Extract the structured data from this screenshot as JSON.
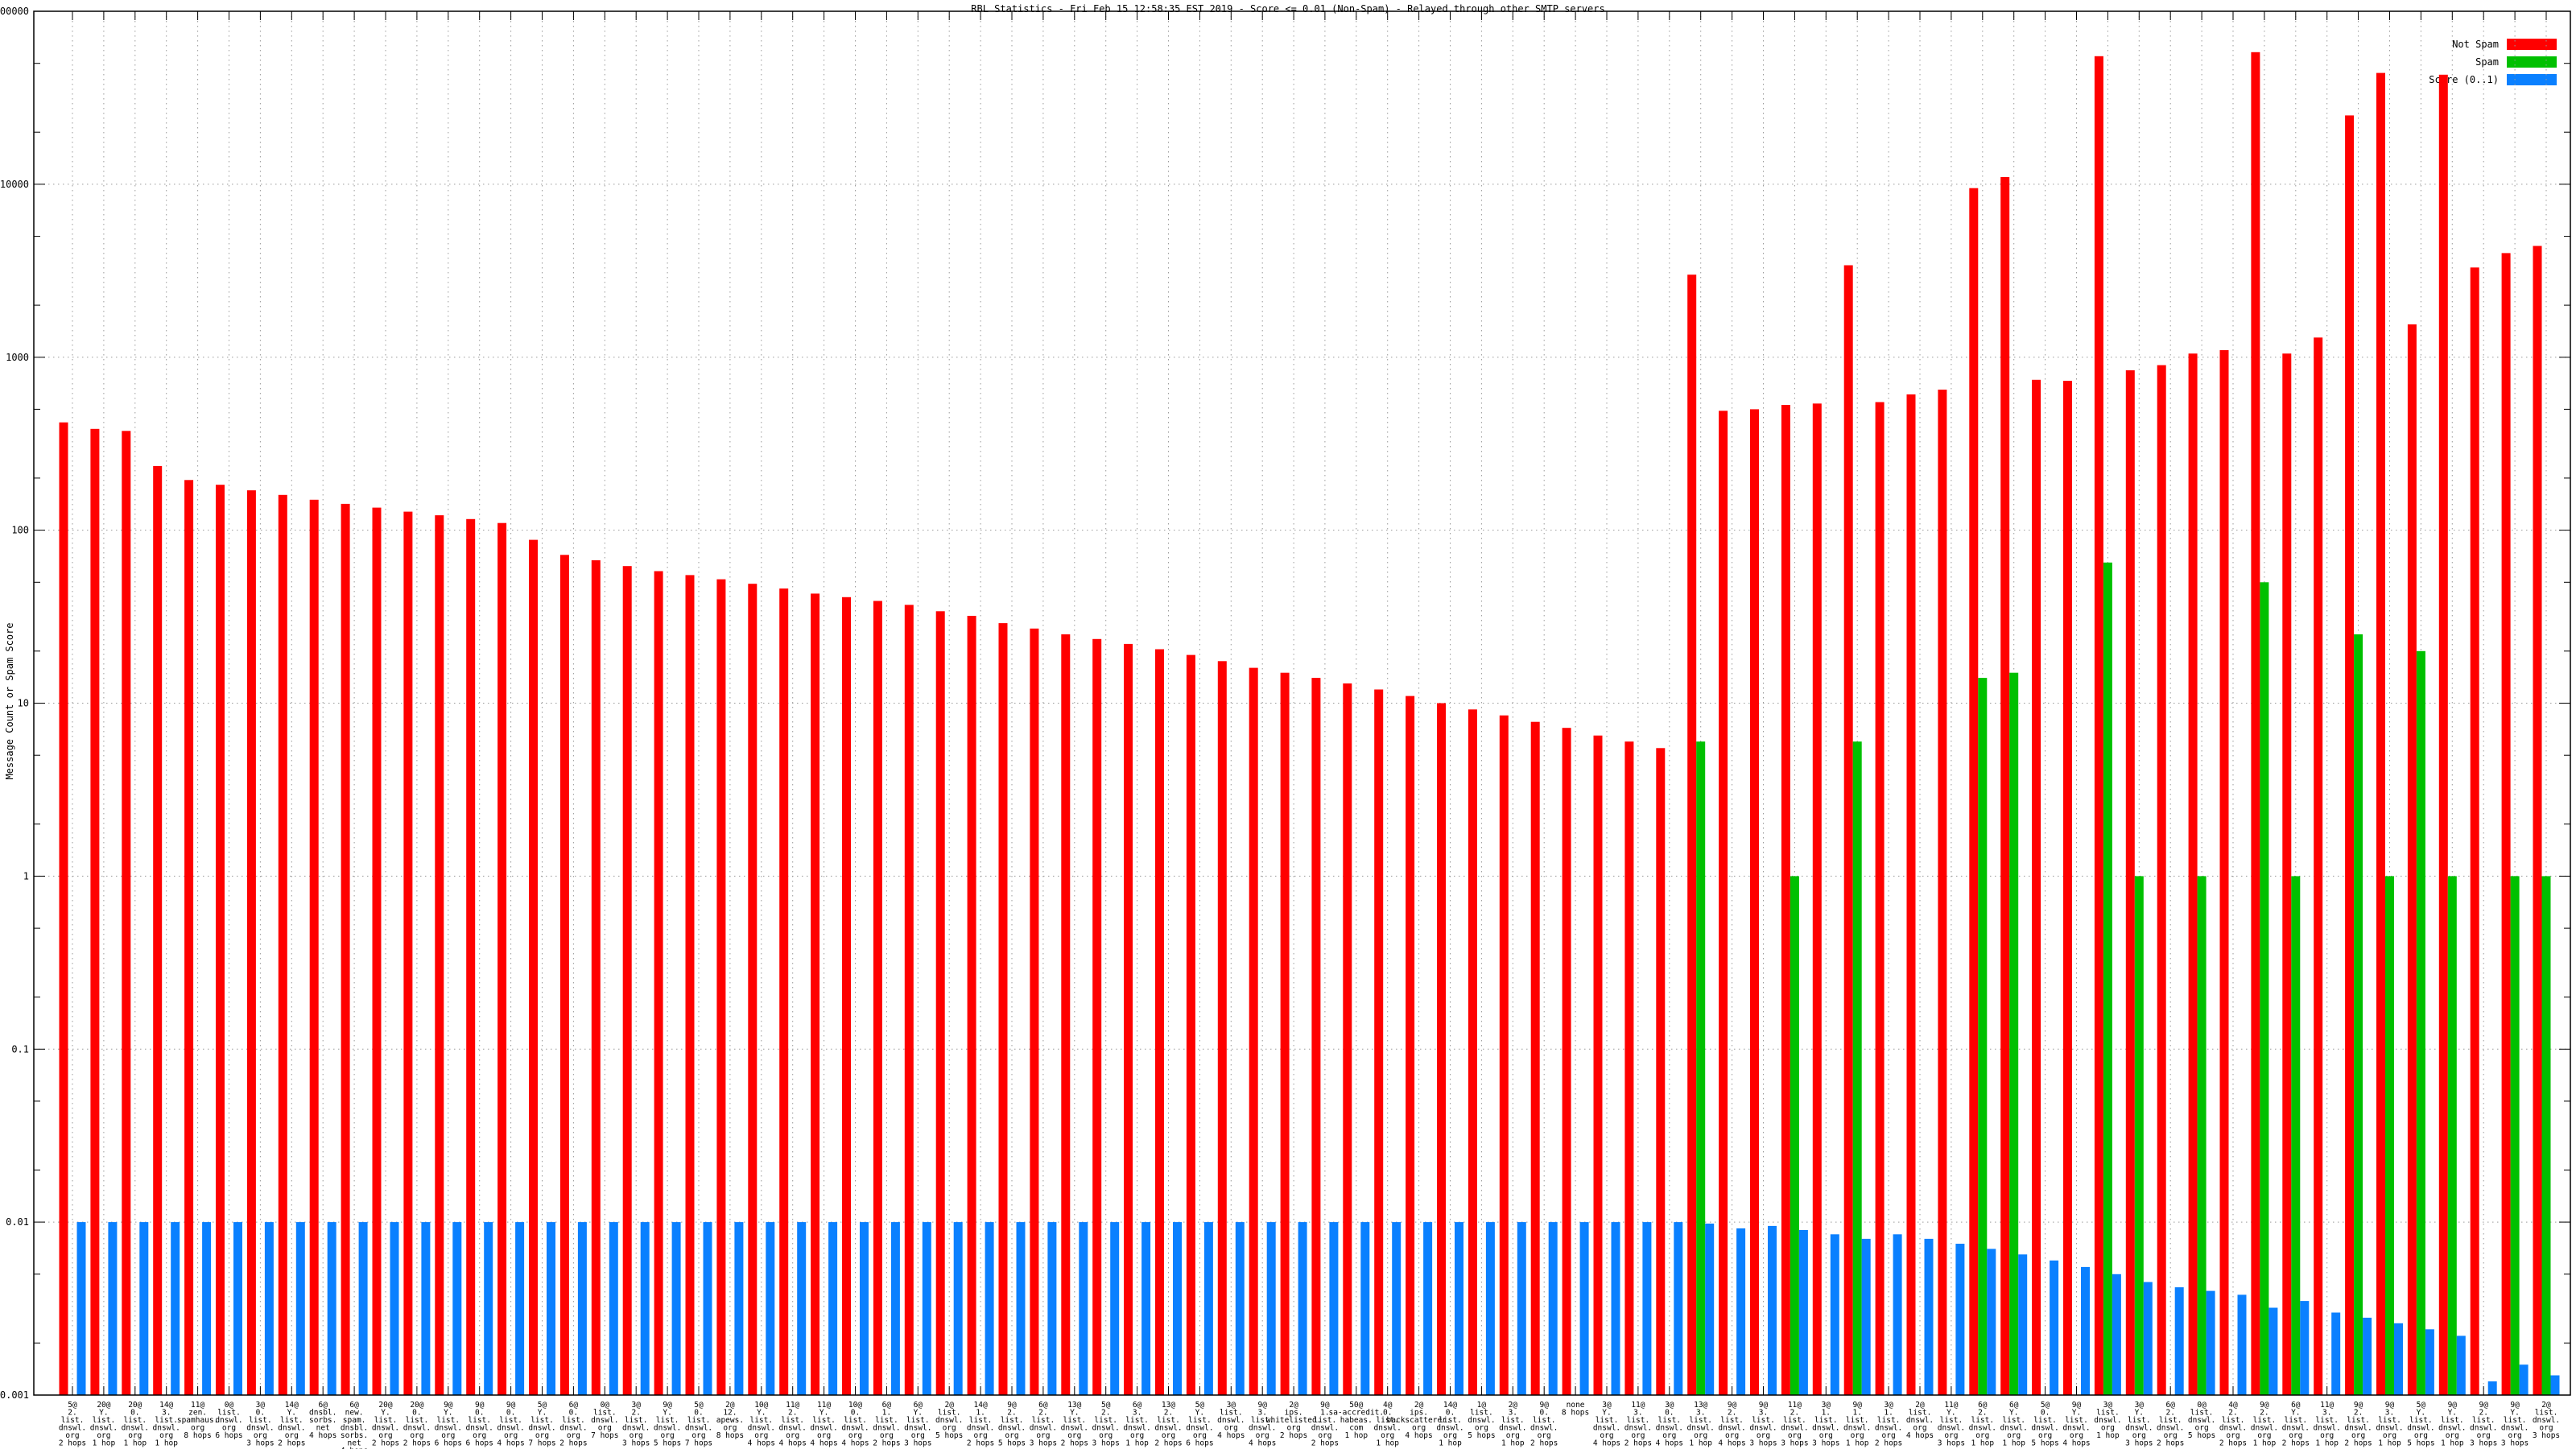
{
  "title": "RBL Statistics - Fri Feb 15 12:58:35 EST 2019 - Score <= 0.01 (Non-Spam) - Relayed through other SMTP servers",
  "colors": {
    "not_spam": "#ff0000",
    "spam": "#00c000",
    "score": "#0a80ff",
    "grid": "#9a9a9a",
    "axis": "#000000"
  },
  "chart_data": {
    "type": "bar",
    "title": "RBL Statistics - Fri Feb 15 12:58:35 EST 2019 - Score <= 0.01 (Non-Spam) - Relayed through other SMTP servers",
    "xlabel": "",
    "ylabel": "Message Count or Spam Score",
    "yscale": "log",
    "ylim": [
      0.001,
      100000
    ],
    "ytick_labels": [
      "100000",
      "10000",
      "1000",
      "100",
      "10",
      "1",
      "0.1",
      "0.01",
      "0.001"
    ],
    "grid": true,
    "legend_position": "top-right",
    "categories": [
      "5@2.list.dnswl.org 2 hops",
      "20@Y.list.dnswl.org 1 hop",
      "20@0.list.dnswl.org 1 hop",
      "14@3.list.dnswl.org 1 hop",
      "11@zen.spamhaus.org 8 hops",
      "0@list.dnswl.org 6 hops",
      "3@0.list.dnswl.org 3 hops",
      "14@Y.list.dnswl.org 2 hops",
      "6@dnsbl.sorbs.net 4 hops",
      "6@new.spam.dnsbl.sorbs.net 4 hops",
      "20@Y.list.dnswl.org 2 hops",
      "20@0.list.dnswl.org 2 hops",
      "9@Y.list.dnswl.org 6 hops",
      "9@0.list.dnswl.org 6 hops",
      "9@0.list.dnswl.org 4 hops",
      "5@Y.list.dnswl.org 7 hops",
      "6@0.list.dnswl.org 2 hops",
      "0@list.dnswl.org 7 hops",
      "3@2.list.dnswl.org 3 hops",
      "9@Y.list.dnswl.org 5 hops",
      "5@0.list.dnswl.org 7 hops",
      "2@12.apews.org 8 hops",
      "10@Y.list.dnswl.org 4 hops",
      "11@2.list.dnswl.org 4 hops",
      "11@Y.list.dnswl.org 4 hops",
      "10@0.list.dnswl.org 4 hops",
      "6@1.list.dnswl.org 2 hops",
      "6@Y.list.dnswl.org 3 hops",
      "2@list.dnswl.org 5 hops",
      "14@1.list.dnswl.org 2 hops",
      "9@2.list.dnswl.org 5 hops",
      "6@2.list.dnswl.org 3 hops",
      "13@Y.list.dnswl.org 2 hops",
      "5@2.list.dnswl.org 3 hops",
      "6@3.list.dnswl.org 1 hop",
      "13@2.list.dnswl.org 2 hops",
      "5@Y.list.dnswl.org 6 hops",
      "3@list.dnswl.org 4 hops",
      "9@3.list.dnswl.org 4 hops",
      "2@ips.whitelisted.org 2 hops",
      "9@1.list.dnswl.org 2 hops",
      "50@sa-accredit.habeas.com 1 hop",
      "4@0.list.dnswl.org 1 hop",
      "2@ips.backscatterer.org 4 hops",
      "14@0.list.dnswl.org 1 hop",
      "1@list.dnswl.org 5 hops",
      "2@3.list.dnswl.org 1 hop",
      "9@0.list.dnswl.org 2 hops",
      "none 8 hops",
      "3@Y.list.dnswl.org 4 hops",
      "11@3.list.dnswl.org 2 hops",
      "3@0.list.dnswl.org 4 hops",
      "13@3.list.dnswl.org 1 hop",
      "9@2.list.dnswl.org 4 hops",
      "9@3.list.dnswl.org 3 hops",
      "11@2.list.dnswl.org 3 hops",
      "3@1.list.dnswl.org 3 hops",
      "9@1.list.dnswl.org 1 hop",
      "3@1.list.dnswl.org 2 hops",
      "2@list.dnswl.org 4 hops",
      "11@Y.list.dnswl.org 3 hops",
      "6@2.list.dnswl.org 1 hop",
      "6@Y.list.dnswl.org 1 hop",
      "5@0.list.dnswl.org 5 hops",
      "9@Y.list.dnswl.org 4 hops",
      "3@list.dnswl.org 1 hop",
      "3@Y.list.dnswl.org 3 hops",
      "6@2.list.dnswl.org 2 hops",
      "0@list.dnswl.org 5 hops",
      "4@2.list.dnswl.org 2 hops",
      "9@2.list.dnswl.org 1 hop",
      "6@Y.list.dnswl.org 2 hops",
      "11@3.list.dnswl.org 1 hop",
      "9@2.list.dnswl.org 2 hops",
      "9@3.list.dnswl.org 1 hop",
      "5@Y.list.dnswl.org 5 hops",
      "9@Y.list.dnswl.org 1 hop",
      "9@2.list.dnswl.org 3 hops",
      "9@Y.list.dnswl.org 3 hops",
      "2@list.dnswl.org 3 hops"
    ],
    "series": [
      {
        "name": "Not Spam",
        "color": "#ff0000",
        "values": [
          420,
          385,
          375,
          235,
          195,
          183,
          170,
          160,
          150,
          142,
          135,
          128,
          122,
          116,
          110,
          88,
          72,
          67,
          62,
          58,
          55,
          52,
          49,
          46,
          43,
          41,
          39,
          37,
          34,
          32,
          29,
          27,
          25,
          23.5,
          22,
          20.5,
          19,
          17.5,
          16,
          15,
          14,
          13,
          12,
          11,
          10,
          9.2,
          8.5,
          7.8,
          7.2,
          6.5,
          6,
          5.5,
          3000,
          490,
          500,
          530,
          540,
          3400,
          550,
          610,
          650,
          9500,
          11000,
          740,
          730,
          55000,
          840,
          900,
          1050,
          1100,
          58000,
          1050,
          1300,
          25000,
          44000,
          1550,
          43000,
          3300,
          4000,
          4400
        ]
      },
      {
        "name": "Spam",
        "color": "#00c000",
        "values": [
          0,
          0,
          0,
          0,
          0,
          0,
          0,
          0,
          0,
          0,
          0,
          0,
          0,
          0,
          0,
          0,
          0,
          0,
          0,
          0,
          0,
          0,
          0,
          0,
          0,
          0,
          0,
          0,
          0,
          0,
          0,
          0,
          0,
          0,
          0,
          0,
          0,
          0,
          0,
          0,
          0,
          0,
          0,
          0,
          0,
          0,
          0,
          0,
          0,
          0,
          0,
          0,
          6,
          0,
          0,
          1,
          0,
          6,
          0,
          0,
          0,
          14,
          15,
          0,
          0,
          65,
          1,
          0,
          1,
          0,
          50,
          1,
          0,
          25,
          1,
          20,
          1,
          0,
          1,
          1
        ]
      },
      {
        "name": "Score (0..1)",
        "color": "#0a80ff",
        "values": [
          0.01,
          0.01,
          0.01,
          0.01,
          0.01,
          0.01,
          0.01,
          0.01,
          0.01,
          0.01,
          0.01,
          0.01,
          0.01,
          0.01,
          0.01,
          0.01,
          0.01,
          0.01,
          0.01,
          0.01,
          0.01,
          0.01,
          0.01,
          0.01,
          0.01,
          0.01,
          0.01,
          0.01,
          0.01,
          0.01,
          0.01,
          0.01,
          0.01,
          0.01,
          0.01,
          0.01,
          0.01,
          0.01,
          0.01,
          0.01,
          0.01,
          0.01,
          0.01,
          0.01,
          0.01,
          0.01,
          0.01,
          0.01,
          0.01,
          0.01,
          0.01,
          0.01,
          0.0098,
          0.0092,
          0.0095,
          0.009,
          0.0085,
          0.008,
          0.0085,
          0.008,
          0.0075,
          0.007,
          0.0065,
          0.006,
          0.0055,
          0.005,
          0.0045,
          0.0042,
          0.004,
          0.0038,
          0.0032,
          0.0035,
          0.003,
          0.0028,
          0.0026,
          0.0024,
          0.0022,
          0.0012,
          0.0015,
          0.0013
        ]
      }
    ]
  }
}
